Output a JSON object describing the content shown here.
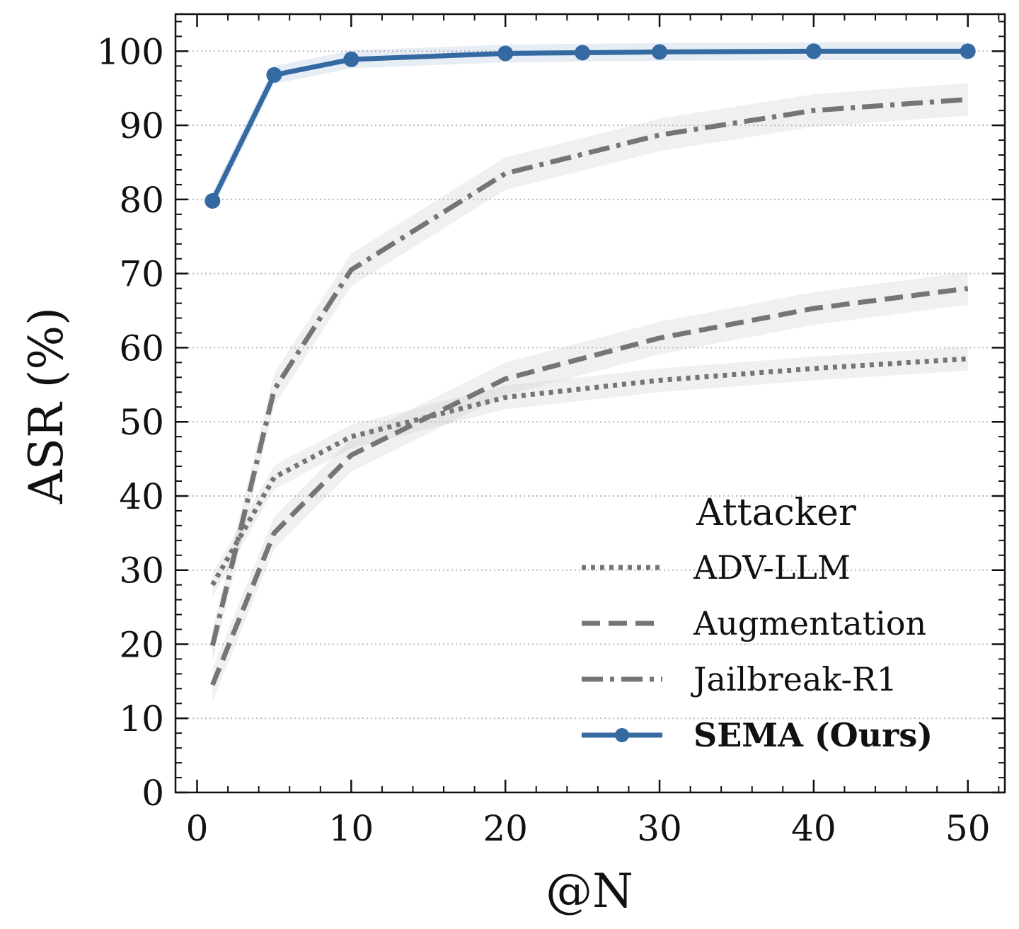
{
  "chart_data": {
    "type": "line",
    "xlabel": "@N",
    "ylabel": "ASR (%)",
    "xlim": [
      -1.4,
      52.4
    ],
    "ylim": [
      0,
      105
    ],
    "x_ticks": [
      0,
      10,
      20,
      30,
      40,
      50
    ],
    "y_ticks": [
      0,
      10,
      20,
      30,
      40,
      50,
      60,
      70,
      80,
      90,
      100
    ],
    "grid": "horizontal dotted",
    "legend": {
      "title": "Attacker",
      "position": "bottom-right"
    },
    "series": [
      {
        "name": "ADV-LLM",
        "style": "dotted",
        "color": "#767474",
        "x": [
          1,
          5,
          10,
          20,
          30,
          40,
          50
        ],
        "y": [
          28.0,
          42.5,
          48.0,
          53.3,
          55.6,
          57.2,
          58.5
        ],
        "band": 1.6
      },
      {
        "name": "Augmentation",
        "style": "dashed",
        "color": "#767474",
        "x": [
          1,
          5,
          10,
          20,
          30,
          40,
          50
        ],
        "y": [
          14.5,
          35.0,
          45.5,
          55.8,
          61.3,
          65.3,
          68.0
        ],
        "band": 2.2
      },
      {
        "name": "Jailbreak-R1",
        "style": "dashdot",
        "color": "#767474",
        "x": [
          1,
          5,
          10,
          20,
          30,
          40,
          50
        ],
        "y": [
          19.8,
          54.3,
          70.5,
          83.5,
          88.7,
          92.0,
          93.5
        ],
        "band": 2.2
      },
      {
        "name": "SEMA (Ours)",
        "style": "solid-marker",
        "color": "#3569a2",
        "x": [
          1,
          5,
          10,
          20,
          25,
          30,
          40,
          50
        ],
        "y": [
          79.8,
          96.8,
          98.9,
          99.7,
          99.8,
          99.9,
          100,
          100
        ],
        "band": 1.2
      }
    ]
  }
}
